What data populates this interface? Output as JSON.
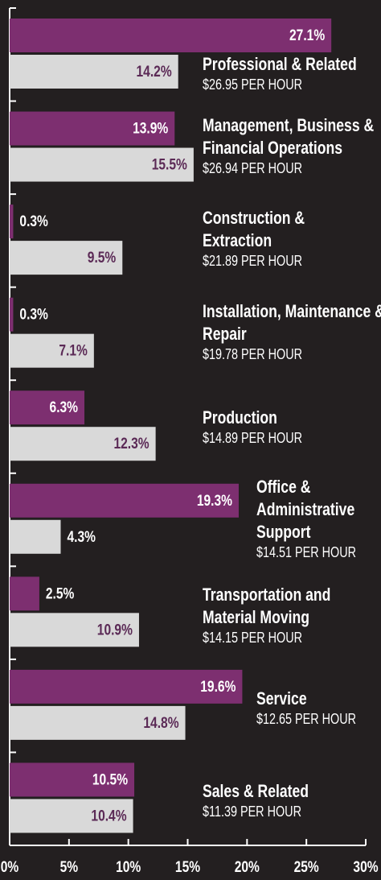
{
  "chart_data": {
    "type": "hbar",
    "categories": [
      "Professional & Related",
      "Management, Business & Financial Operations",
      "Construction & Extraction",
      "Installation, Maintenance & Repair",
      "Production",
      "Office & Administrative Support",
      "Transportation and Material Moving",
      "Service",
      "Sales & Related"
    ],
    "wages": [
      "$26.95 PER HOUR",
      "$26.94 PER HOUR",
      "$21.89 PER HOUR",
      "$19.78 PER HOUR",
      "$14.89 PER HOUR",
      "$14.51 PER HOUR",
      "$14.15 PER HOUR",
      "$12.65 PER HOUR",
      "$11.39 PER HOUR"
    ],
    "series": [
      {
        "color": "#7d2f70",
        "values": [
          27.1,
          13.9,
          0.3,
          0.3,
          6.3,
          19.3,
          2.5,
          19.6,
          10.5
        ],
        "value_labels": [
          "27.1%",
          "13.9%",
          "0.3%",
          "0.3%",
          "6.3%",
          "19.3%",
          "2.5%",
          "19.6%",
          "10.5%"
        ]
      },
      {
        "color": "#d9d9d9",
        "values": [
          14.2,
          15.5,
          9.5,
          7.1,
          12.3,
          4.3,
          10.9,
          14.8,
          10.4
        ],
        "value_labels": [
          "14.2%",
          "15.5%",
          "9.5%",
          "7.1%",
          "12.3%",
          "4.3%",
          "10.9%",
          "14.8%",
          "10.4%"
        ]
      }
    ],
    "xlim": [
      0,
      30
    ],
    "xticks": [
      {
        "value": 0,
        "label": "0%"
      },
      {
        "value": 5,
        "label": "5%"
      },
      {
        "value": 10,
        "label": "10%"
      },
      {
        "value": 15,
        "label": "15%"
      },
      {
        "value": 20,
        "label": "20%"
      },
      {
        "value": 25,
        "label": "25%"
      },
      {
        "value": 30,
        "label": "30%"
      }
    ]
  }
}
